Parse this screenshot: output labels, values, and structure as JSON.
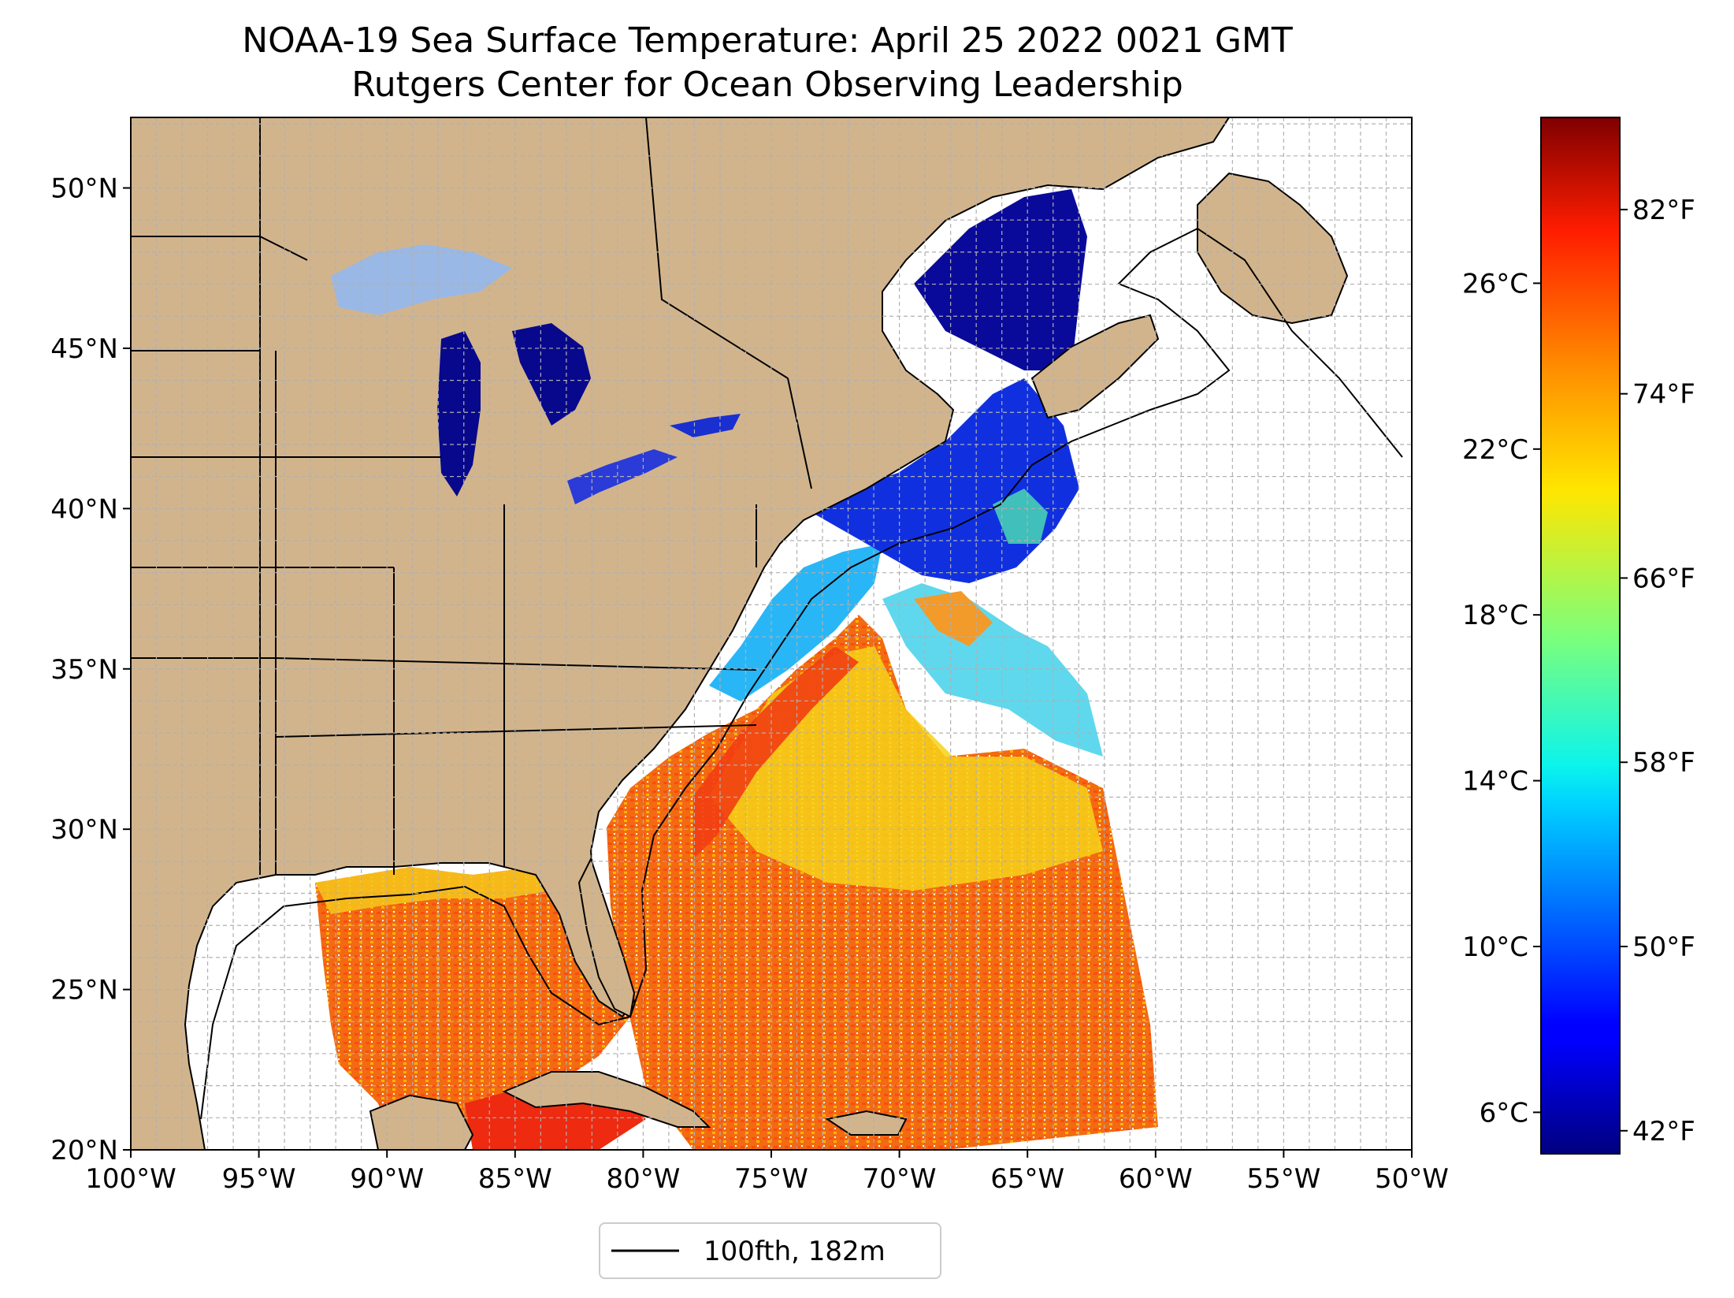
{
  "title": {
    "line1": "NOAA-19 Sea Surface Temperature: April 25 2022 0021 GMT",
    "line2": "Rutgers Center for Ocean Observing Leadership"
  },
  "map": {
    "extent": {
      "lon_min": -100,
      "lon_max": -50,
      "lat_min": 20,
      "lat_max": 52.2
    },
    "lat_ticks": [
      {
        "value": 20,
        "label": "20°N"
      },
      {
        "value": 25,
        "label": "25°N"
      },
      {
        "value": 30,
        "label": "30°N"
      },
      {
        "value": 35,
        "label": "35°N"
      },
      {
        "value": 40,
        "label": "40°N"
      },
      {
        "value": 45,
        "label": "45°N"
      },
      {
        "value": 50,
        "label": "50°N"
      }
    ],
    "lon_ticks": [
      {
        "value": -100,
        "label": "100°W"
      },
      {
        "value": -95,
        "label": "95°W"
      },
      {
        "value": -90,
        "label": "90°W"
      },
      {
        "value": -85,
        "label": "85°W"
      },
      {
        "value": -80,
        "label": "80°W"
      },
      {
        "value": -75,
        "label": "75°W"
      },
      {
        "value": -70,
        "label": "70°W"
      },
      {
        "value": -65,
        "label": "65°W"
      },
      {
        "value": -60,
        "label": "60°W"
      },
      {
        "value": -55,
        "label": "55°W"
      },
      {
        "value": -50,
        "label": "50°W"
      }
    ],
    "gridlines": "dashed, 1° spacing",
    "colors": {
      "land": "#d2b48c",
      "lakes": "#9ab8e6",
      "ocean_no_data": "#ffffff",
      "borders": "#000000"
    }
  },
  "legend": {
    "label": "100fth, 182m",
    "placement": "below-map"
  },
  "colorbar": {
    "colormap": "jet",
    "range_c": [
      5,
      30
    ],
    "celsius_ticks": [
      {
        "value": 6,
        "label": "6°C"
      },
      {
        "value": 10,
        "label": "10°C"
      },
      {
        "value": 14,
        "label": "14°C"
      },
      {
        "value": 18,
        "label": "18°C"
      },
      {
        "value": 22,
        "label": "22°C"
      },
      {
        "value": 26,
        "label": "26°C"
      }
    ],
    "fahrenheit_ticks": [
      {
        "value": 42,
        "label": "42°F"
      },
      {
        "value": 50,
        "label": "50°F"
      },
      {
        "value": 58,
        "label": "58°F"
      },
      {
        "value": 66,
        "label": "66°F"
      },
      {
        "value": 74,
        "label": "74°F"
      },
      {
        "value": 82,
        "label": "82°F"
      }
    ]
  }
}
